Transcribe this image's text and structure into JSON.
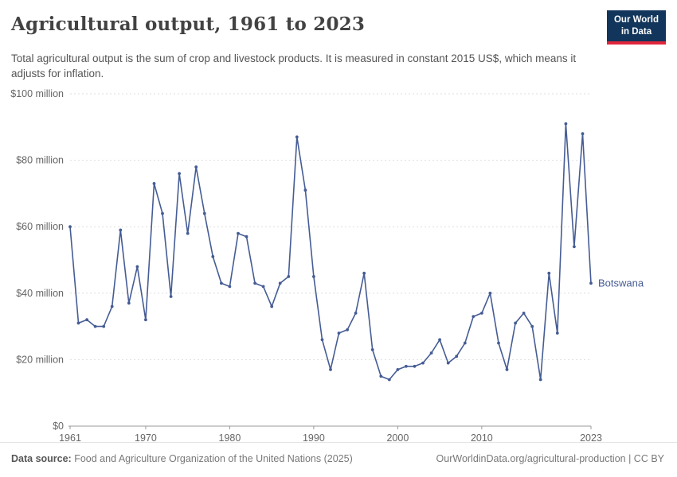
{
  "header": {
    "title": "Agricultural output, 1961 to 2023",
    "subtitle": "Total agricultural output is the sum of crop and livestock products. It is measured in constant 2015 US$, which means it adjusts for inflation.",
    "logo": {
      "line1": "Our World",
      "line2": "in Data"
    }
  },
  "colors": {
    "line": "#455c94",
    "logo_bg": "#12355b",
    "logo_accent": "#e0263c",
    "gridline": "#dedede",
    "axis": "#999999",
    "tick_text": "#666666"
  },
  "chart_data": {
    "type": "line",
    "title": "Agricultural output, 1961 to 2023",
    "xlabel": "",
    "ylabel": "",
    "unit": "constant 2015 US$",
    "grid": true,
    "legend_position": "end-of-line",
    "xlim": [
      1961,
      2023
    ],
    "ylim": [
      0,
      100
    ],
    "x_ticks": [
      1961,
      1970,
      1980,
      1990,
      2000,
      2010,
      2023
    ],
    "y_ticks": [
      0,
      20,
      40,
      60,
      80,
      100
    ],
    "y_tick_labels": [
      "$0",
      "$20 million",
      "$40 million",
      "$60 million",
      "$80 million",
      "$100 million"
    ],
    "series": [
      {
        "name": "Botswana",
        "color": "#455c94",
        "x": [
          1961,
          1962,
          1963,
          1964,
          1965,
          1966,
          1967,
          1968,
          1969,
          1970,
          1971,
          1972,
          1973,
          1974,
          1975,
          1976,
          1977,
          1978,
          1979,
          1980,
          1981,
          1982,
          1983,
          1984,
          1985,
          1986,
          1987,
          1988,
          1989,
          1990,
          1991,
          1992,
          1993,
          1994,
          1995,
          1996,
          1997,
          1998,
          1999,
          2000,
          2001,
          2002,
          2003,
          2004,
          2005,
          2006,
          2007,
          2008,
          2009,
          2010,
          2011,
          2012,
          2013,
          2014,
          2015,
          2016,
          2017,
          2018,
          2019,
          2020,
          2021,
          2022,
          2023
        ],
        "values": [
          60,
          31,
          32,
          30,
          30,
          36,
          59,
          37,
          48,
          32,
          73,
          64,
          39,
          76,
          58,
          78,
          64,
          51,
          43,
          42,
          58,
          57,
          43,
          42,
          36,
          43,
          45,
          87,
          71,
          45,
          26,
          17,
          28,
          29,
          34,
          46,
          23,
          15,
          14,
          17,
          18,
          18,
          19,
          22,
          26,
          19,
          21,
          25,
          33,
          34,
          40,
          25,
          17,
          31,
          34,
          30,
          14,
          46,
          28,
          91,
          54,
          88,
          43
        ]
      }
    ]
  },
  "footer": {
    "source_label": "Data source:",
    "source_text": "Food and Agriculture Organization of the United Nations (2025)",
    "credit": "OurWorldinData.org/agricultural-production | CC BY"
  }
}
